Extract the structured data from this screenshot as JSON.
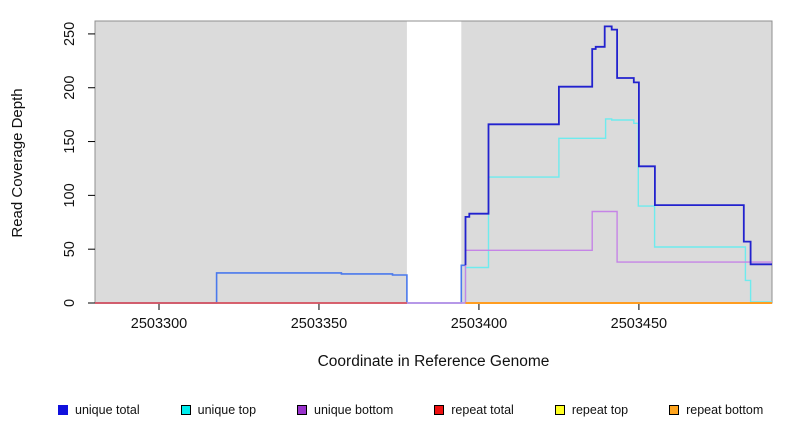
{
  "chart_data": {
    "type": "line",
    "subtype": "step-coverage",
    "title": "",
    "xlabel": "Coordinate in Reference Genome",
    "ylabel": "Read Coverage Depth",
    "grid": false,
    "axes": {
      "x_min": 2503280,
      "x_max": 2503491.6,
      "y_min": 0,
      "y_max": 262,
      "x_ticks": [
        {
          "value": 2503300,
          "label": "2503300"
        },
        {
          "value": 2503350,
          "label": "2503350"
        },
        {
          "value": 2503400,
          "label": "2503400"
        },
        {
          "value": 2503450,
          "label": "2503450"
        }
      ],
      "y_ticks": [
        {
          "value": 0,
          "label": "0"
        },
        {
          "value": 50,
          "label": "50"
        },
        {
          "value": 100,
          "label": "100"
        },
        {
          "value": 150,
          "label": "150"
        },
        {
          "value": 200,
          "label": "200"
        },
        {
          "value": 250,
          "label": "250"
        }
      ]
    },
    "background": {
      "shaded_color": "#dbdbdb",
      "border_color": "#8f8f8f",
      "shaded_x_ranges": [
        [
          2503280,
          2503377.5
        ],
        [
          2503394.5,
          2503491.6
        ]
      ],
      "white_gap_x_range": [
        2503377.5,
        2503394.5
      ]
    },
    "series": [
      {
        "id": "unique-total-left",
        "name": "unique total",
        "parts": [
          {
            "color": "#4a79ec",
            "width": 1.6,
            "points": [
              [
                2503280,
                0
              ],
              [
                2503318,
                0
              ],
              [
                2503318,
                28
              ],
              [
                2503357,
                28
              ],
              [
                2503357,
                27
              ],
              [
                2503373,
                27
              ],
              [
                2503373,
                26
              ],
              [
                2503377.5,
                26
              ],
              [
                2503377.5,
                0
              ],
              [
                2503394.5,
                0
              ],
              [
                2503394.5,
                35
              ],
              [
                2503395.8,
                35
              ]
            ]
          }
        ]
      },
      {
        "id": "unique-top",
        "name": "unique top",
        "parts": [
          {
            "color": "#6eebee",
            "width": 1.4,
            "points": [
              [
                2503280,
                0
              ],
              [
                2503395.8,
                0
              ],
              [
                2503395.8,
                33
              ],
              [
                2503403,
                33
              ],
              [
                2503403,
                117
              ],
              [
                2503425,
                117
              ],
              [
                2503425,
                153
              ],
              [
                2503439.6,
                153
              ],
              [
                2503439.6,
                171
              ],
              [
                2503441.5,
                171
              ],
              [
                2503441.5,
                170
              ],
              [
                2503448.4,
                170
              ],
              [
                2503448.4,
                167
              ],
              [
                2503449.8,
                167
              ],
              [
                2503449.8,
                90
              ],
              [
                2503454.9,
                90
              ],
              [
                2503454.9,
                52
              ],
              [
                2503483.3,
                52
              ],
              [
                2503483.3,
                21
              ],
              [
                2503484.9,
                21
              ],
              [
                2503484.9,
                1
              ],
              [
                2503491.6,
                1
              ]
            ]
          }
        ]
      },
      {
        "id": "unique-bottom",
        "name": "unique bottom",
        "parts": [
          {
            "color": "#c584e6",
            "width": 1.4,
            "points": [
              [
                2503280,
                0
              ],
              [
                2503395.8,
                0
              ],
              [
                2503395.8,
                49
              ],
              [
                2503435.4,
                49
              ],
              [
                2503435.4,
                85
              ],
              [
                2503443.2,
                85
              ],
              [
                2503443.2,
                38
              ],
              [
                2503491.6,
                38
              ]
            ]
          }
        ]
      },
      {
        "id": "repeat-total",
        "name": "repeat total",
        "parts": [
          {
            "color": "#e04545",
            "width": 1.4,
            "points": [
              [
                2503280,
                0
              ],
              [
                2503377.5,
                0
              ]
            ]
          }
        ]
      },
      {
        "id": "repeat-top",
        "name": "repeat top",
        "parts": [
          {
            "color": "#f5f53c",
            "width": 1.4,
            "points": [
              [
                2503395.8,
                0
              ],
              [
                2503491.6,
                0
              ]
            ]
          }
        ]
      },
      {
        "id": "repeat-bottom",
        "name": "repeat bottom",
        "parts": [
          {
            "color": "#ff9d20",
            "width": 2,
            "points": [
              [
                2503395.8,
                0
              ],
              [
                2503491.6,
                0
              ]
            ]
          }
        ]
      },
      {
        "id": "unique-total-right",
        "name": "unique total",
        "parts": [
          {
            "color": "#2222ce",
            "width": 1.8,
            "points": [
              [
                2503395.8,
                35
              ],
              [
                2503395.8,
                80
              ],
              [
                2503397,
                80
              ],
              [
                2503397,
                83
              ],
              [
                2503403,
                83
              ],
              [
                2503403,
                166
              ],
              [
                2503425,
                166
              ],
              [
                2503425,
                201
              ],
              [
                2503435.4,
                201
              ],
              [
                2503435.4,
                236
              ],
              [
                2503436.5,
                236
              ],
              [
                2503436.5,
                238
              ],
              [
                2503439.3,
                238
              ],
              [
                2503439.3,
                257
              ],
              [
                2503441.5,
                257
              ],
              [
                2503441.5,
                254
              ],
              [
                2503443.2,
                254
              ],
              [
                2503443.2,
                209
              ],
              [
                2503448.4,
                209
              ],
              [
                2503448.4,
                205
              ],
              [
                2503450,
                205
              ],
              [
                2503450,
                127
              ],
              [
                2503455,
                127
              ],
              [
                2503455,
                91
              ],
              [
                2503482.8,
                91
              ],
              [
                2503482.8,
                57
              ],
              [
                2503484.9,
                57
              ],
              [
                2503484.9,
                36
              ],
              [
                2503491.6,
                36
              ]
            ]
          }
        ]
      }
    ],
    "legend": {
      "position": "bottom",
      "items": [
        {
          "label": "unique total",
          "fill": "#1111dd",
          "border": "#1111dd"
        },
        {
          "label": "unique top",
          "fill": "#00eeee",
          "border": "#000000"
        },
        {
          "label": "unique bottom",
          "fill": "#9932cc",
          "border": "#000000"
        },
        {
          "label": "repeat total",
          "fill": "#ee1111",
          "border": "#000000"
        },
        {
          "label": "repeat top",
          "fill": "#ffff22",
          "border": "#000000"
        },
        {
          "label": "repeat bottom",
          "fill": "#ffa51e",
          "border": "#000000"
        }
      ]
    }
  }
}
